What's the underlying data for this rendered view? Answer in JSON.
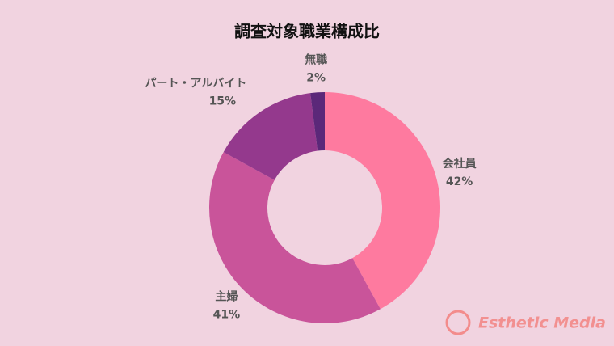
{
  "chart_data": {
    "type": "donut",
    "title": "調査対象職業構成比",
    "categories": [
      "会社員",
      "主婦",
      "パート・アルバイト",
      "無職"
    ],
    "values": [
      42,
      41,
      15,
      2
    ],
    "value_labels": [
      "42%",
      "41%",
      "15%",
      "2%"
    ],
    "colors": [
      "#fe7a9f",
      "#c9549a",
      "#94398d",
      "#5b2879"
    ]
  },
  "watermark": "Esthetic Media"
}
